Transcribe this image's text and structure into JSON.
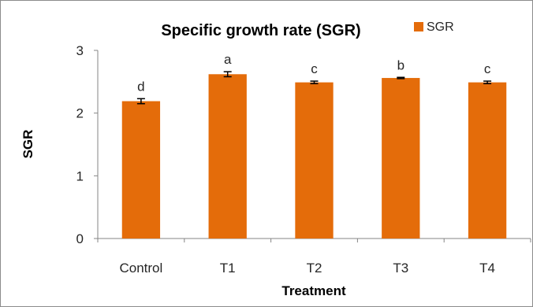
{
  "chart_data": {
    "type": "bar",
    "title": "Specific growth rate (SGR)",
    "xlabel": "Treatment",
    "ylabel": "SGR",
    "categories": [
      "Control",
      "T1",
      "T2",
      "T3",
      "T4"
    ],
    "series": [
      {
        "name": "SGR",
        "color": "#E46C0A",
        "values": [
          2.19,
          2.62,
          2.49,
          2.56,
          2.49
        ],
        "errors": [
          0.04,
          0.04,
          0.02,
          0.01,
          0.02
        ],
        "labels": [
          "d",
          "a",
          "c",
          "b",
          "c"
        ]
      }
    ],
    "ylim": [
      0,
      3
    ],
    "yticks": [
      "0",
      "1",
      "2",
      "3"
    ],
    "grid": false,
    "legend": "top-right"
  }
}
